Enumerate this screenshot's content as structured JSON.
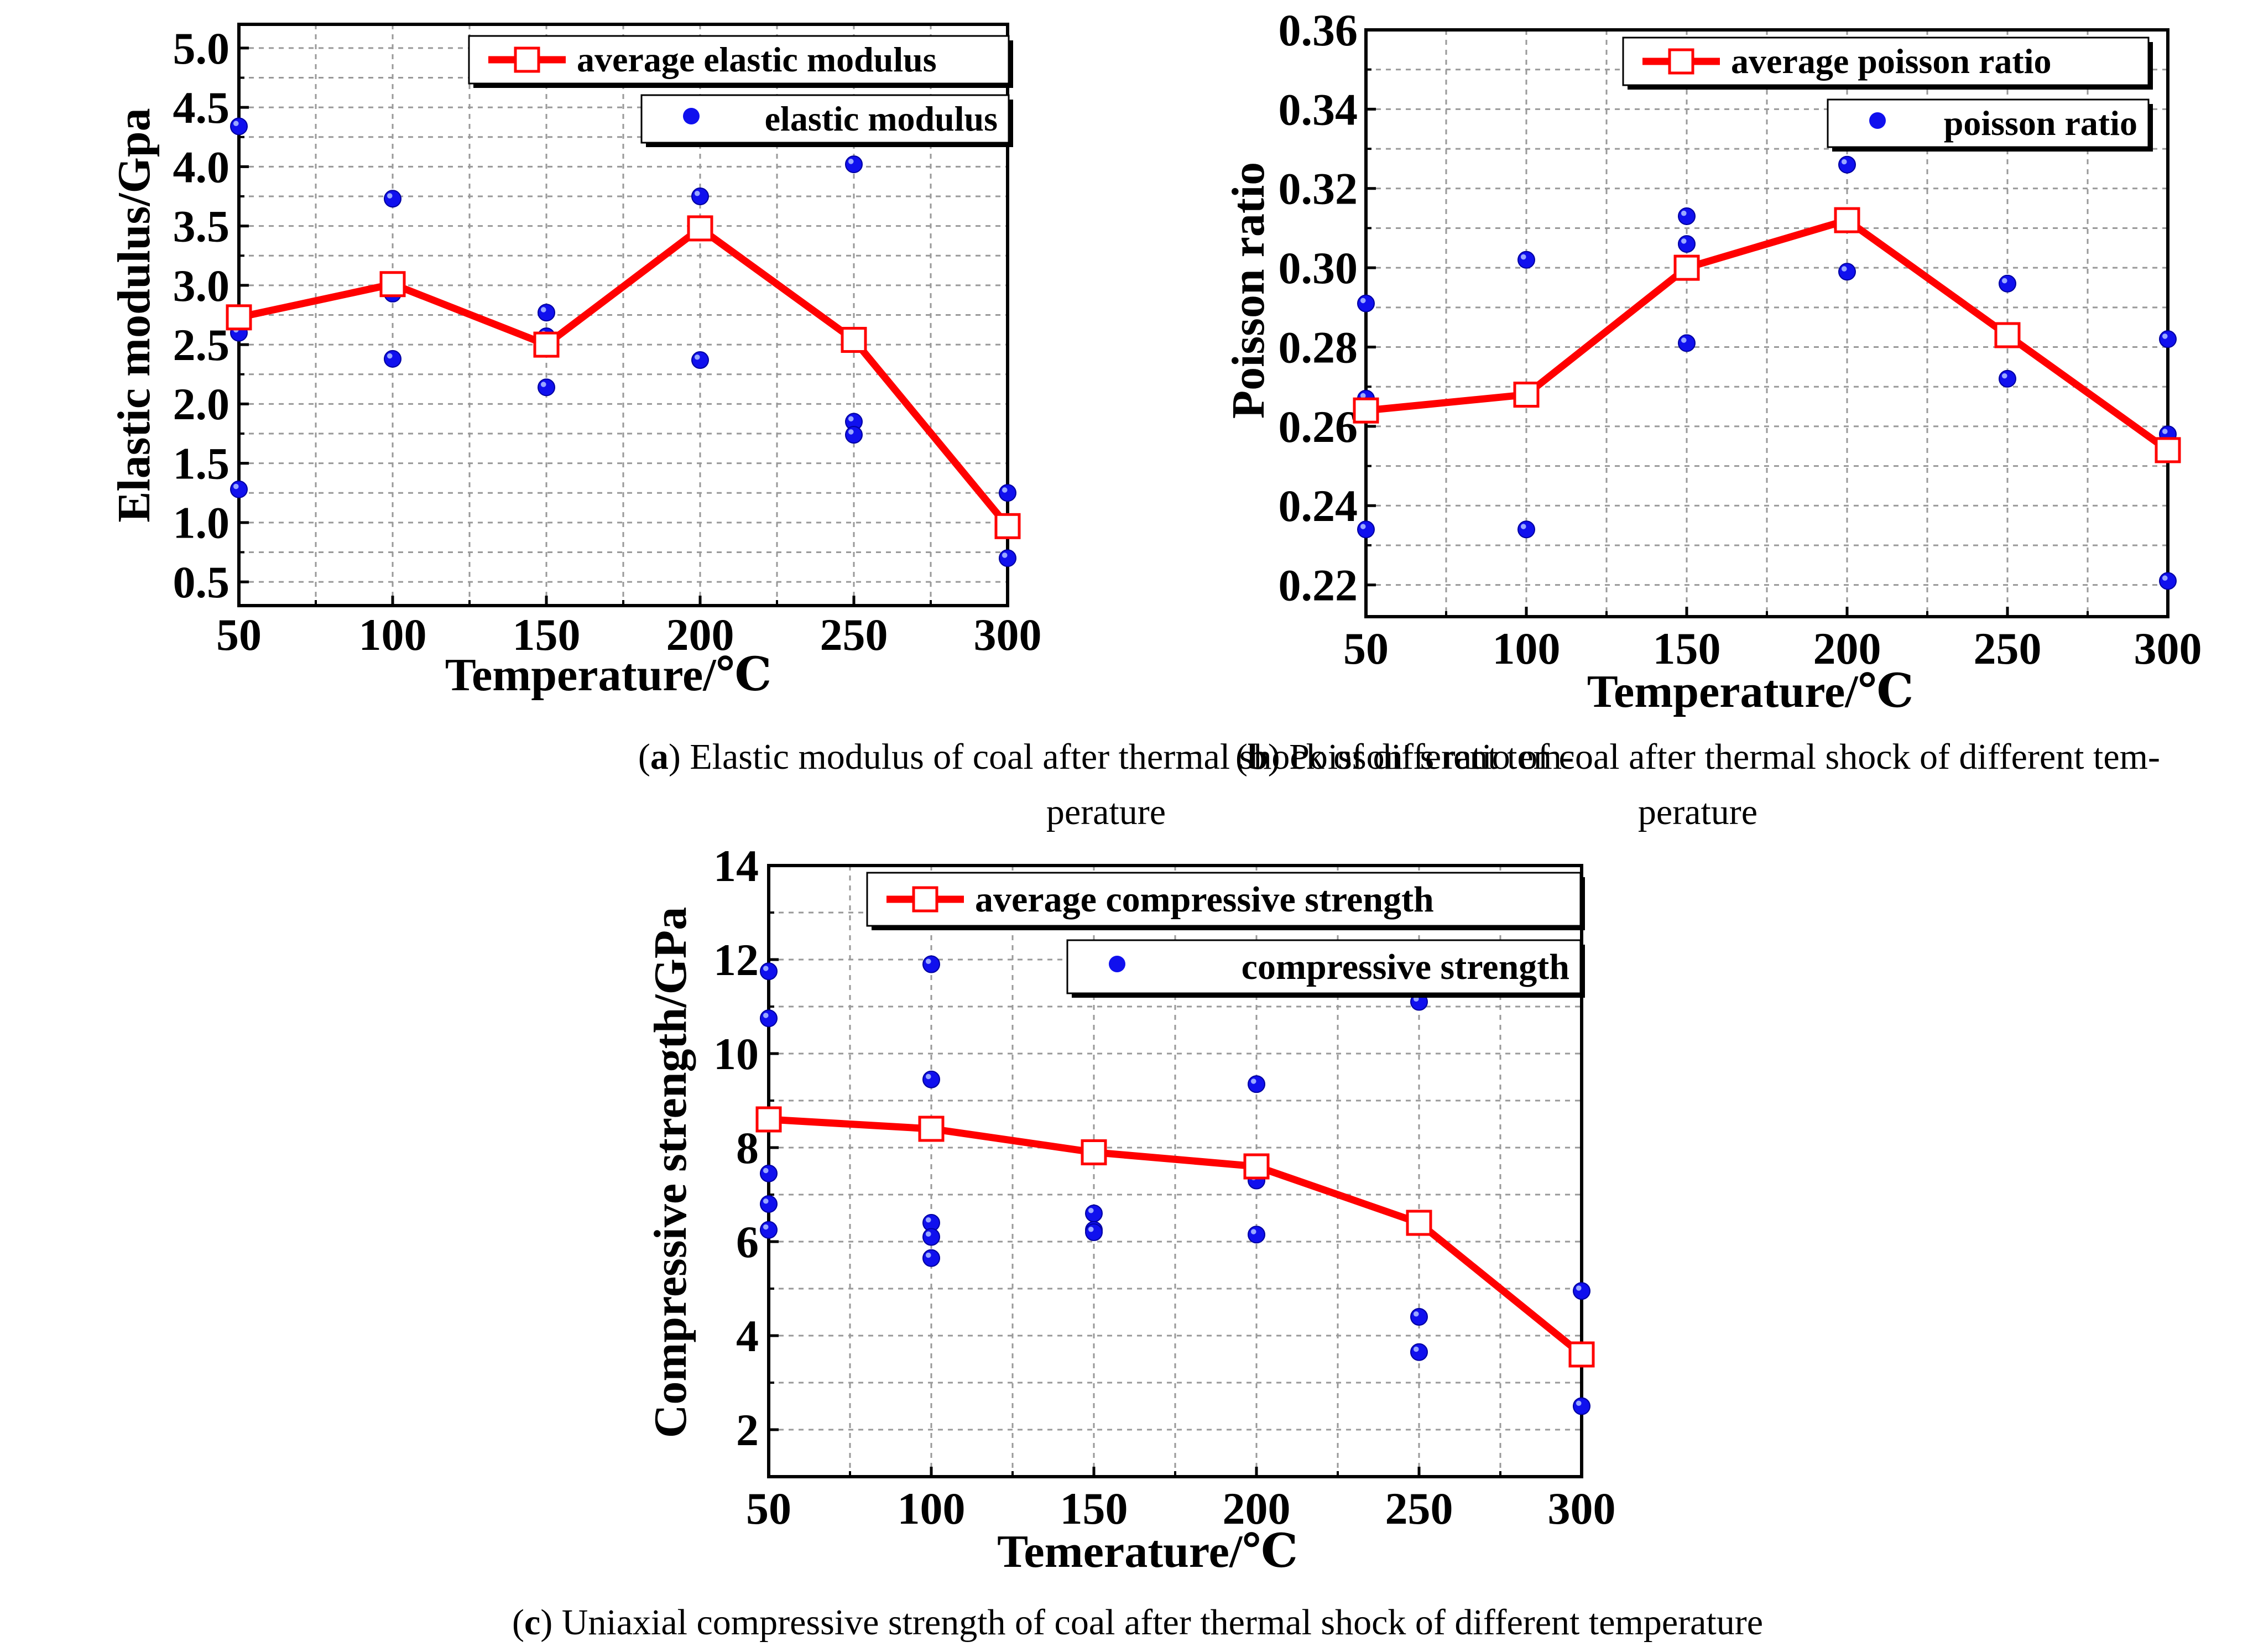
{
  "colors": {
    "average_line": "#ff0000",
    "marker_face": "#ffffff",
    "point_color": "#1010ee",
    "grid": "#999999",
    "axis": "#000000"
  },
  "chart_data": [
    {
      "id": "a",
      "type": "line",
      "xlabel": "Temperature/℃",
      "ylabel": "Elastic modulus/Gpa",
      "xlim": [
        50,
        300
      ],
      "ylim": [
        0.3,
        5.2
      ],
      "xticks": [
        50,
        100,
        150,
        200,
        250,
        300
      ],
      "yticks": [
        0.5,
        1.0,
        1.5,
        2.0,
        2.5,
        3.0,
        3.5,
        4.0,
        4.5,
        5.0
      ],
      "ytick_labels": [
        "0.5",
        "1.0",
        "1.5",
        "2.0",
        "2.5",
        "3.0",
        "3.5",
        "4.0",
        "4.5",
        "5.0"
      ],
      "grid": true,
      "legend_position": "top-right",
      "series": [
        {
          "name": "average elastic modulus",
          "kind": "line-square",
          "points": [
            [
              50,
              2.73
            ],
            [
              100,
              3.01
            ],
            [
              150,
              2.5
            ],
            [
              200,
              3.48
            ],
            [
              250,
              2.54
            ],
            [
              300,
              0.97
            ]
          ]
        },
        {
          "name": "elastic modulus",
          "kind": "scatter",
          "points": [
            [
              50,
              4.34
            ],
            [
              50,
              2.6
            ],
            [
              50,
              1.28
            ],
            [
              100,
              3.73
            ],
            [
              100,
              2.93
            ],
            [
              100,
              2.38
            ],
            [
              150,
              2.77
            ],
            [
              150,
              2.57
            ],
            [
              150,
              2.14
            ],
            [
              200,
              3.75
            ],
            [
              200,
              2.37
            ],
            [
              250,
              4.02
            ],
            [
              250,
              1.85
            ],
            [
              250,
              1.74
            ],
            [
              300,
              1.25
            ],
            [
              300,
              0.7
            ]
          ]
        }
      ],
      "caption_label": "a",
      "caption_lines": [
        ") Elastic modulus of coal after thermal shock of different tem-",
        "perature"
      ]
    },
    {
      "id": "b",
      "type": "line",
      "xlabel": "Temperature/℃",
      "ylabel": "Poisson ratio",
      "xlim": [
        50,
        300
      ],
      "ylim": [
        0.212,
        0.36
      ],
      "xticks": [
        50,
        100,
        150,
        200,
        250,
        300
      ],
      "yticks": [
        0.22,
        0.24,
        0.26,
        0.28,
        0.3,
        0.32,
        0.34,
        0.36
      ],
      "ytick_labels": [
        "0.22",
        "0.24",
        "0.26",
        "0.28",
        "0.30",
        "0.32",
        "0.34",
        "0.36"
      ],
      "grid": true,
      "legend_position": "top-right",
      "series": [
        {
          "name": "average poisson ratio",
          "kind": "line-square",
          "points": [
            [
              50,
              0.264
            ],
            [
              100,
              0.268
            ],
            [
              150,
              0.3
            ],
            [
              200,
              0.312
            ],
            [
              250,
              0.283
            ],
            [
              300,
              0.254
            ]
          ]
        },
        {
          "name": "poisson ratio",
          "kind": "scatter",
          "points": [
            [
              50,
              0.291
            ],
            [
              50,
              0.267
            ],
            [
              50,
              0.234
            ],
            [
              100,
              0.302
            ],
            [
              100,
              0.268
            ],
            [
              100,
              0.234
            ],
            [
              150,
              0.313
            ],
            [
              150,
              0.306
            ],
            [
              150,
              0.281
            ],
            [
              200,
              0.326
            ],
            [
              200,
              0.299
            ],
            [
              250,
              0.296
            ],
            [
              250,
              0.282
            ],
            [
              250,
              0.272
            ],
            [
              300,
              0.282
            ],
            [
              300,
              0.258
            ],
            [
              300,
              0.221
            ]
          ]
        }
      ],
      "caption_label": "b",
      "caption_lines": [
        ") Poisson′ s ratio of coal after thermal shock of different tem-",
        "perature"
      ]
    },
    {
      "id": "c",
      "type": "line",
      "xlabel": "Temerature/℃",
      "ylabel": "Compressive strength/GPa",
      "xlim": [
        50,
        300
      ],
      "ylim": [
        1,
        14
      ],
      "xticks": [
        50,
        100,
        150,
        200,
        250,
        300
      ],
      "yticks": [
        2,
        4,
        6,
        8,
        10,
        12,
        14
      ],
      "ytick_labels": [
        "2",
        "4",
        "6",
        "8",
        "10",
        "12",
        "14"
      ],
      "grid": true,
      "legend_position": "top-right",
      "series": [
        {
          "name": "average compressive strength",
          "kind": "line-square",
          "points": [
            [
              50,
              8.6
            ],
            [
              100,
              8.4
            ],
            [
              150,
              7.9
            ],
            [
              200,
              7.6
            ],
            [
              250,
              6.4
            ],
            [
              300,
              3.6
            ]
          ]
        },
        {
          "name": "compressive strength",
          "kind": "scatter",
          "points": [
            [
              50,
              11.75
            ],
            [
              50,
              10.75
            ],
            [
              50,
              7.45
            ],
            [
              50,
              6.8
            ],
            [
              50,
              6.25
            ],
            [
              100,
              11.9
            ],
            [
              100,
              9.45
            ],
            [
              100,
              6.4
            ],
            [
              100,
              6.1
            ],
            [
              100,
              5.65
            ],
            [
              150,
              6.6
            ],
            [
              150,
              6.25
            ],
            [
              150,
              6.2
            ],
            [
              200,
              9.35
            ],
            [
              200,
              7.3
            ],
            [
              200,
              6.15
            ],
            [
              250,
              11.1
            ],
            [
              250,
              4.4
            ],
            [
              250,
              3.65
            ],
            [
              300,
              4.95
            ],
            [
              300,
              2.5
            ]
          ]
        }
      ],
      "caption_label": "c",
      "caption_lines": [
        ") Uniaxial compressive strength of coal after thermal shock of different temperature"
      ]
    }
  ]
}
